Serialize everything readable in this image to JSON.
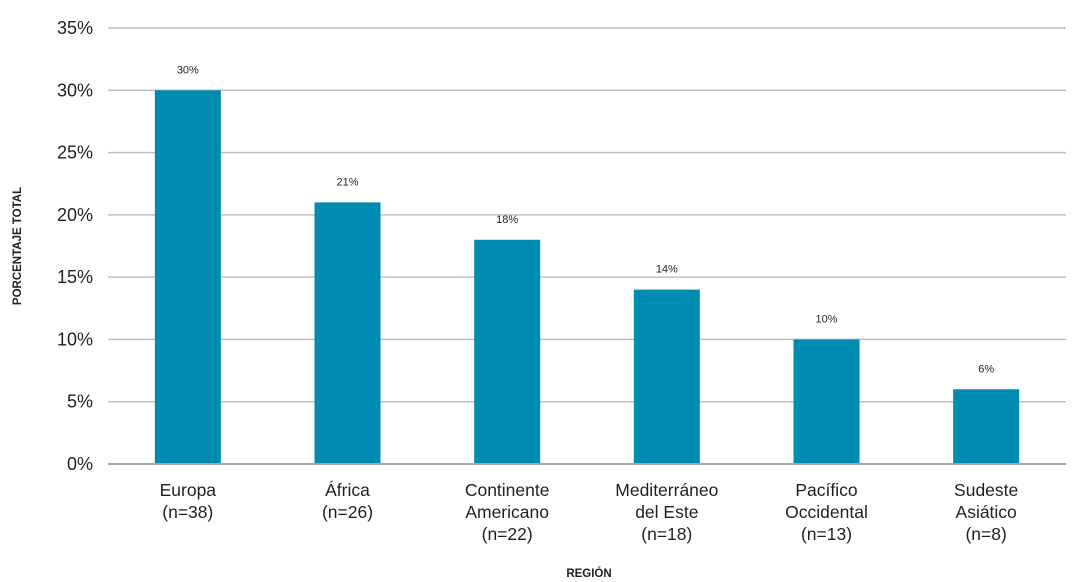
{
  "chart_data": {
    "type": "bar",
    "title": "",
    "xlabel": "REGIÓN",
    "ylabel": "PORCENTAJE TOTAL",
    "categories": [
      [
        "Europa",
        "(n=38)"
      ],
      [
        "África",
        "(n=26)"
      ],
      [
        "Continente",
        "Americano",
        "(n=22)"
      ],
      [
        "Mediterráneo",
        "del Este",
        "(n=18)"
      ],
      [
        "Pacífico",
        "Occidental",
        "(n=13)"
      ],
      [
        "Sudeste",
        "Asiático",
        "(n=8)"
      ]
    ],
    "values": [
      30,
      21,
      18,
      14,
      10,
      6
    ],
    "data_labels": [
      "30%",
      "21%",
      "18%",
      "14%",
      "10%",
      "6%"
    ],
    "yticks": [
      "0%",
      "5%",
      "10%",
      "15%",
      "20%",
      "25%",
      "30%",
      "35%"
    ],
    "ylim": [
      0,
      35
    ],
    "grid": true,
    "legend": "none",
    "colors": {
      "bar": "#008bb0",
      "grid": "#bfbfbf",
      "axis": "#a6a6a6",
      "text": "#231f20"
    }
  }
}
